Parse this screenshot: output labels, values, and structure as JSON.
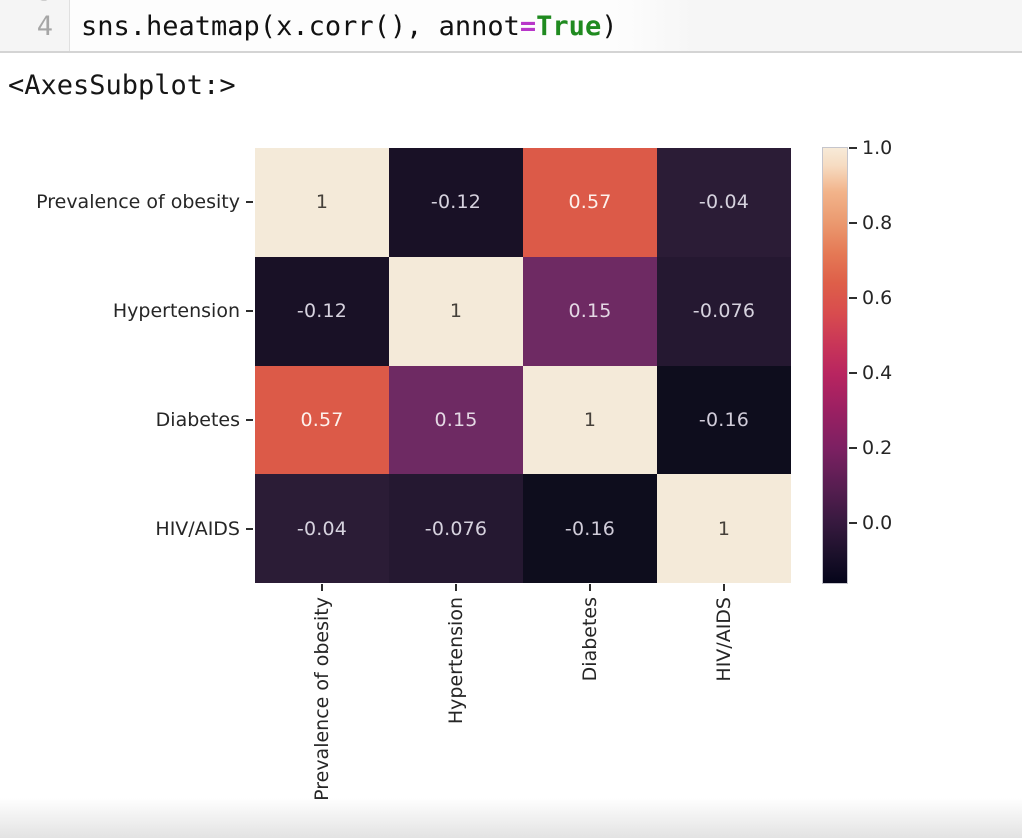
{
  "code_cell": {
    "prev_line_number": "3",
    "line_number": "4",
    "code": {
      "pre": "sns.heatmap(x.corr(), annot",
      "operator": "=",
      "keyword": "True",
      "post": ")"
    }
  },
  "output_text": "<AxesSubplot:>",
  "chart_data": {
    "type": "heatmap",
    "title": "",
    "categories": [
      "Prevalence of obesity",
      "Hypertension",
      "Diabetes",
      "HIV/AIDS"
    ],
    "matrix": [
      [
        1,
        -0.12,
        0.57,
        -0.04
      ],
      [
        -0.12,
        1,
        0.15,
        -0.076
      ],
      [
        0.57,
        0.15,
        1,
        -0.16
      ],
      [
        -0.04,
        -0.076,
        -0.16,
        1
      ]
    ],
    "cells": [
      [
        {
          "v": "1",
          "bg": "#f4ead9",
          "fg": "#45403a"
        },
        {
          "v": "-0.12",
          "bg": "#191126",
          "fg": "#d6d2de"
        },
        {
          "v": "0.57",
          "bg": "#dc5a48",
          "fg": "#fdf1ec"
        },
        {
          "v": "-0.04",
          "bg": "#2b1c36",
          "fg": "#d6d2de"
        }
      ],
      [
        {
          "v": "-0.12",
          "bg": "#191126",
          "fg": "#d6d2de"
        },
        {
          "v": "1",
          "bg": "#f4ead9",
          "fg": "#45403a"
        },
        {
          "v": "0.15",
          "bg": "#6e2a63",
          "fg": "#e4d8e4"
        },
        {
          "v": "-0.076",
          "bg": "#251831",
          "fg": "#d6d2de"
        }
      ],
      [
        {
          "v": "0.57",
          "bg": "#dc5a48",
          "fg": "#fdf1ec"
        },
        {
          "v": "0.15",
          "bg": "#6e2a63",
          "fg": "#e4d8e4"
        },
        {
          "v": "1",
          "bg": "#f4ead9",
          "fg": "#45403a"
        },
        {
          "v": "-0.16",
          "bg": "#0e0d1d",
          "fg": "#d0ccd9"
        }
      ],
      [
        {
          "v": "-0.04",
          "bg": "#2b1c36",
          "fg": "#d6d2de"
        },
        {
          "v": "-0.076",
          "bg": "#251831",
          "fg": "#d6d2de"
        },
        {
          "v": "-0.16",
          "bg": "#0e0d1d",
          "fg": "#d0ccd9"
        },
        {
          "v": "1",
          "bg": "#f4ead9",
          "fg": "#45403a"
        }
      ]
    ],
    "colorbar": {
      "ticks": [
        "1.0",
        "0.8",
        "0.6",
        "0.4",
        "0.2",
        "0.0"
      ],
      "vmin": -0.16,
      "vmax": 1.0,
      "colormap": "rocket",
      "gradient_top_to_bottom": [
        {
          "pct": 0,
          "color": "#f7ead8"
        },
        {
          "pct": 4,
          "color": "#f6dcc2"
        },
        {
          "pct": 10,
          "color": "#f2b48b"
        },
        {
          "pct": 17,
          "color": "#eb9a70"
        },
        {
          "pct": 24,
          "color": "#e57a56"
        },
        {
          "pct": 31,
          "color": "#de5f49"
        },
        {
          "pct": 38,
          "color": "#d84c4e"
        },
        {
          "pct": 45,
          "color": "#c93658"
        },
        {
          "pct": 52,
          "color": "#b82560"
        },
        {
          "pct": 60,
          "color": "#9c2062"
        },
        {
          "pct": 69,
          "color": "#7c2062"
        },
        {
          "pct": 78,
          "color": "#571e51"
        },
        {
          "pct": 86,
          "color": "#37193f"
        },
        {
          "pct": 93,
          "color": "#1d112c"
        },
        {
          "pct": 100,
          "color": "#05051a"
        }
      ]
    },
    "legend_position": "right",
    "grid": false,
    "xlabel": "",
    "ylabel": ""
  }
}
